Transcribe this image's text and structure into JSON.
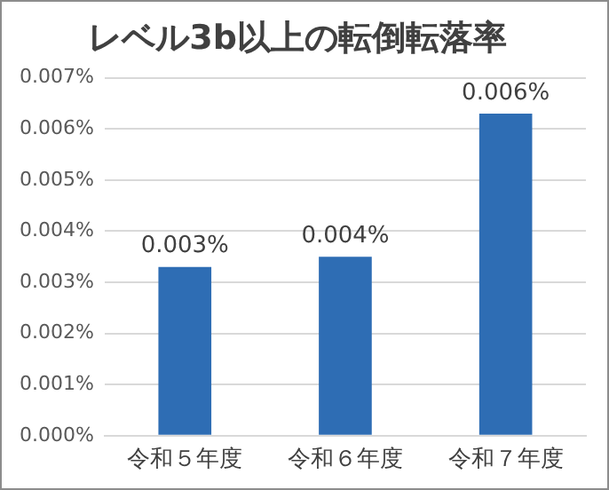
{
  "chart_data": {
    "type": "bar",
    "title": "レベル3b以上の転倒転落率",
    "categories": [
      "令和５年度",
      "令和６年度",
      "令和７年度"
    ],
    "values": [
      0.0033,
      0.0035,
      0.0063
    ],
    "value_labels": [
      "0.003%",
      "0.004%",
      "0.006%"
    ],
    "color": "#2e6db4",
    "ylim": [
      0,
      0.007
    ],
    "yticks": [
      {
        "value": 0,
        "label": "0.000%"
      },
      {
        "value": 0.001,
        "label": "0.001%"
      },
      {
        "value": 0.002,
        "label": "0.002%"
      },
      {
        "value": 0.003,
        "label": "0.003%"
      },
      {
        "value": 0.004,
        "label": "0.004%"
      },
      {
        "value": 0.005,
        "label": "0.005%"
      },
      {
        "value": 0.006,
        "label": "0.006%"
      },
      {
        "value": 0.007,
        "label": "0.007%"
      }
    ],
    "grid": "y",
    "legend": false
  }
}
